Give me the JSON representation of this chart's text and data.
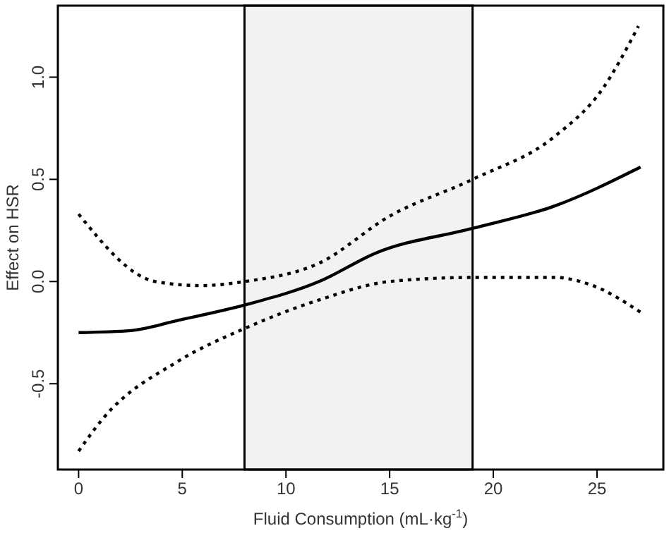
{
  "chart_data": {
    "type": "line",
    "xlabel": "Fluid Consumption (mL·kg$^{-1}$)",
    "ylabel": "Effect on HSR",
    "xlim": [
      -1,
      28.2
    ],
    "ylim": [
      -0.92,
      1.35
    ],
    "xticks": [
      0,
      5,
      10,
      15,
      20,
      25
    ],
    "yticks": [
      -0.5,
      {
        "value": 0,
        "label": "0.0"
      },
      0.5,
      {
        "value": 1,
        "label": "1.0"
      }
    ],
    "grid": false,
    "bands": [
      {
        "axis": "x",
        "from": 8,
        "to": 19,
        "color": "#f2f2f2"
      }
    ],
    "series": [
      {
        "color": "#000000",
        "line_style": "solid",
        "x": [
          0,
          2.54,
          4.8,
          8,
          11.6,
          14.35,
          19,
          22.96,
          27.1
        ],
        "values": [
          -0.25,
          -0.24,
          -0.19,
          -0.115,
          0,
          0.14,
          0.26,
          0.37,
          0.56
        ]
      },
      {
        "color": "#000000",
        "line_style": "dotted",
        "x": [
          0,
          3.7,
          5.9,
          8,
          11.6,
          15,
          19,
          22.96,
          25.25,
          27
        ],
        "values": [
          0.33,
          0,
          -0.02,
          0,
          0.09,
          0.32,
          0.5,
          0.71,
          0.94,
          1.25
        ]
      },
      {
        "color": "#000000",
        "line_style": "dotted",
        "x": [
          0,
          1.18,
          4.8,
          8,
          11.6,
          15,
          19,
          22.96,
          24.8,
          27.1
        ],
        "values": [
          -0.83,
          -0.67,
          -0.39,
          -0.23,
          -0.09,
          0,
          0.02,
          0.02,
          -0.02,
          -0.15
        ]
      }
    ]
  }
}
